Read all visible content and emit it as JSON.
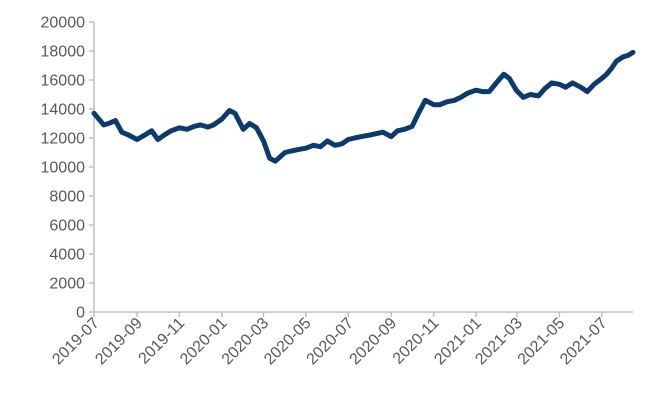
{
  "chart_data": {
    "type": "line",
    "title": "",
    "xlabel": "",
    "ylabel": "",
    "ylim": [
      0,
      20000
    ],
    "y_ticks": [
      0,
      2000,
      4000,
      6000,
      8000,
      10000,
      12000,
      14000,
      16000,
      18000,
      20000
    ],
    "y_tick_labels": [
      "0",
      "2000",
      "4000",
      "6000",
      "8000",
      "10000",
      "12000",
      "14000",
      "16000",
      "18000",
      "20000"
    ],
    "x_range": [
      "2019-07-01",
      "2021-08-15"
    ],
    "x_ticks": [
      "2019-07-01",
      "2019-09-01",
      "2019-11-01",
      "2020-01-01",
      "2020-03-01",
      "2020-05-01",
      "2020-07-01",
      "2020-09-01",
      "2020-11-01",
      "2021-01-01",
      "2021-03-01",
      "2021-05-01",
      "2021-07-01"
    ],
    "x_tick_labels": [
      "2019-07",
      "2019-09",
      "2019-11",
      "2020-01",
      "2020-03",
      "2020-05",
      "2020-07",
      "2020-09",
      "2020-11",
      "2021-01",
      "2021-03",
      "2021-05",
      "2021-07"
    ],
    "grid": false,
    "legend": "none",
    "line_color": "#0b3a6e",
    "axis_color": "#bfbfbf",
    "series": [
      {
        "x": [
          "2019-07-01",
          "2019-07-08",
          "2019-07-15",
          "2019-07-22",
          "2019-08-01",
          "2019-08-10",
          "2019-08-20",
          "2019-09-01",
          "2019-09-12",
          "2019-09-22",
          "2019-10-01",
          "2019-10-10",
          "2019-10-20",
          "2019-11-01",
          "2019-11-12",
          "2019-11-22",
          "2019-12-01",
          "2019-12-12",
          "2019-12-20",
          "2020-01-01",
          "2020-01-12",
          "2020-01-20",
          "2020-02-01",
          "2020-02-10",
          "2020-02-20",
          "2020-03-01",
          "2020-03-10",
          "2020-03-18",
          "2020-03-25",
          "2020-04-01",
          "2020-04-10",
          "2020-04-20",
          "2020-05-01",
          "2020-05-12",
          "2020-05-22",
          "2020-06-01",
          "2020-06-12",
          "2020-06-22",
          "2020-07-01",
          "2020-07-10",
          "2020-07-20",
          "2020-08-01",
          "2020-08-10",
          "2020-08-20",
          "2020-09-01",
          "2020-09-10",
          "2020-09-20",
          "2020-10-01",
          "2020-10-10",
          "2020-10-20",
          "2020-11-01",
          "2020-11-10",
          "2020-11-20",
          "2020-12-01",
          "2020-12-10",
          "2020-12-20",
          "2021-01-01",
          "2021-01-10",
          "2021-01-20",
          "2021-02-01",
          "2021-02-10",
          "2021-02-18",
          "2021-02-28",
          "2021-03-10",
          "2021-03-20",
          "2021-04-01",
          "2021-04-10",
          "2021-04-20",
          "2021-05-01",
          "2021-05-10",
          "2021-05-20",
          "2021-06-01",
          "2021-06-10",
          "2021-06-20",
          "2021-07-01",
          "2021-07-08",
          "2021-07-15",
          "2021-07-22",
          "2021-08-01",
          "2021-08-08",
          "2021-08-15"
        ],
        "values": [
          13700,
          13300,
          12900,
          13000,
          13200,
          12400,
          12200,
          11900,
          12200,
          12500,
          11900,
          12200,
          12500,
          12700,
          12600,
          12800,
          12900,
          12750,
          12900,
          13300,
          13900,
          13700,
          12600,
          13000,
          12700,
          11800,
          10600,
          10400,
          10700,
          11000,
          11100,
          11200,
          11300,
          11500,
          11400,
          11800,
          11500,
          11600,
          11900,
          12000,
          12100,
          12200,
          12300,
          12400,
          12100,
          12500,
          12600,
          12800,
          13700,
          14600,
          14300,
          14300,
          14500,
          14600,
          14800,
          15100,
          15300,
          15200,
          15200,
          15900,
          16400,
          16100,
          15300,
          14800,
          15000,
          14900,
          15400,
          15800,
          15700,
          15500,
          15800,
          15500,
          15200,
          15700,
          16100,
          16400,
          16800,
          17300,
          17600,
          17700,
          17900
        ]
      }
    ]
  }
}
